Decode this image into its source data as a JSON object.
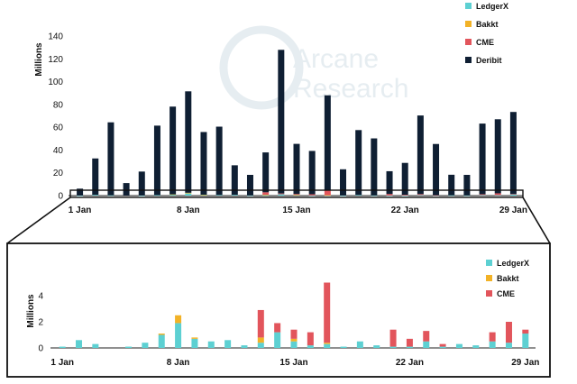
{
  "watermark": {
    "line1": "Arcane",
    "line2": "Research"
  },
  "colors": {
    "LedgerX": "#5dd0d2",
    "Bakkt": "#f2b227",
    "CME": "#e2555c",
    "Deribit": "#0f1f33",
    "axis": "#222222"
  },
  "chart_data": [
    {
      "type": "bar",
      "stacked": true,
      "ylabel": "Millions",
      "xlabel": "",
      "ylim": [
        0,
        140
      ],
      "yticks": [
        0,
        20,
        40,
        60,
        80,
        100,
        120,
        140
      ],
      "legend_position": "top-right",
      "x_tick_labels": [
        "1 Jan",
        "8 Jan",
        "15 Jan",
        "22 Jan",
        "29 Jan"
      ],
      "categories": [
        "1 Jan",
        "2 Jan",
        "3 Jan",
        "4 Jan",
        "5 Jan",
        "6 Jan",
        "7 Jan",
        "8 Jan",
        "9 Jan",
        "10 Jan",
        "11 Jan",
        "12 Jan",
        "13 Jan",
        "14 Jan",
        "15 Jan",
        "16 Jan",
        "17 Jan",
        "18 Jan",
        "19 Jan",
        "20 Jan",
        "21 Jan",
        "22 Jan",
        "23 Jan",
        "24 Jan",
        "25 Jan",
        "26 Jan",
        "27 Jan",
        "28 Jan",
        "29 Jan"
      ],
      "series": [
        {
          "name": "LedgerX",
          "values": [
            0.1,
            0.6,
            0.3,
            0.0,
            0.1,
            0.4,
            1.0,
            1.9,
            0.7,
            0.5,
            0.6,
            0.2,
            0.4,
            1.2,
            0.5,
            0.2,
            0.3,
            0.1,
            0.5,
            0.2,
            0.1,
            0.1,
            0.5,
            0.1,
            0.3,
            0.2,
            0.5,
            0.4,
            1.1
          ]
        },
        {
          "name": "Bakkt",
          "values": [
            0,
            0,
            0,
            0,
            0,
            0,
            0.1,
            0.6,
            0.1,
            0,
            0,
            0,
            0.4,
            0,
            0.2,
            0,
            0.1,
            0,
            0,
            0,
            0,
            0,
            0,
            0,
            0,
            0,
            0,
            0,
            0
          ]
        },
        {
          "name": "CME",
          "values": [
            0,
            0,
            0,
            0,
            0,
            0,
            0,
            0,
            0,
            0,
            0,
            0,
            2.1,
            0.7,
            0.7,
            1.0,
            4.6,
            0,
            0,
            0,
            1.3,
            0.6,
            0.8,
            0.2,
            0,
            0,
            0.7,
            1.6,
            0.3
          ]
        },
        {
          "name": "Deribit",
          "values": [
            6,
            32,
            64,
            11,
            21,
            61,
            77,
            89,
            55,
            60,
            26,
            18,
            35,
            126,
            44,
            38,
            83,
            23,
            57,
            50,
            20,
            28,
            69,
            45,
            18,
            18,
            62,
            65,
            72
          ]
        }
      ]
    },
    {
      "type": "bar",
      "stacked": true,
      "ylabel": "Millions",
      "xlabel": "",
      "ylim": [
        0,
        5
      ],
      "yticks": [
        0,
        2,
        4
      ],
      "legend_position": "top-right",
      "x_tick_labels": [
        "1 Jan",
        "8 Jan",
        "15 Jan",
        "22 Jan",
        "29 Jan"
      ],
      "series_names": [
        "LedgerX",
        "Bakkt",
        "CME"
      ]
    }
  ]
}
